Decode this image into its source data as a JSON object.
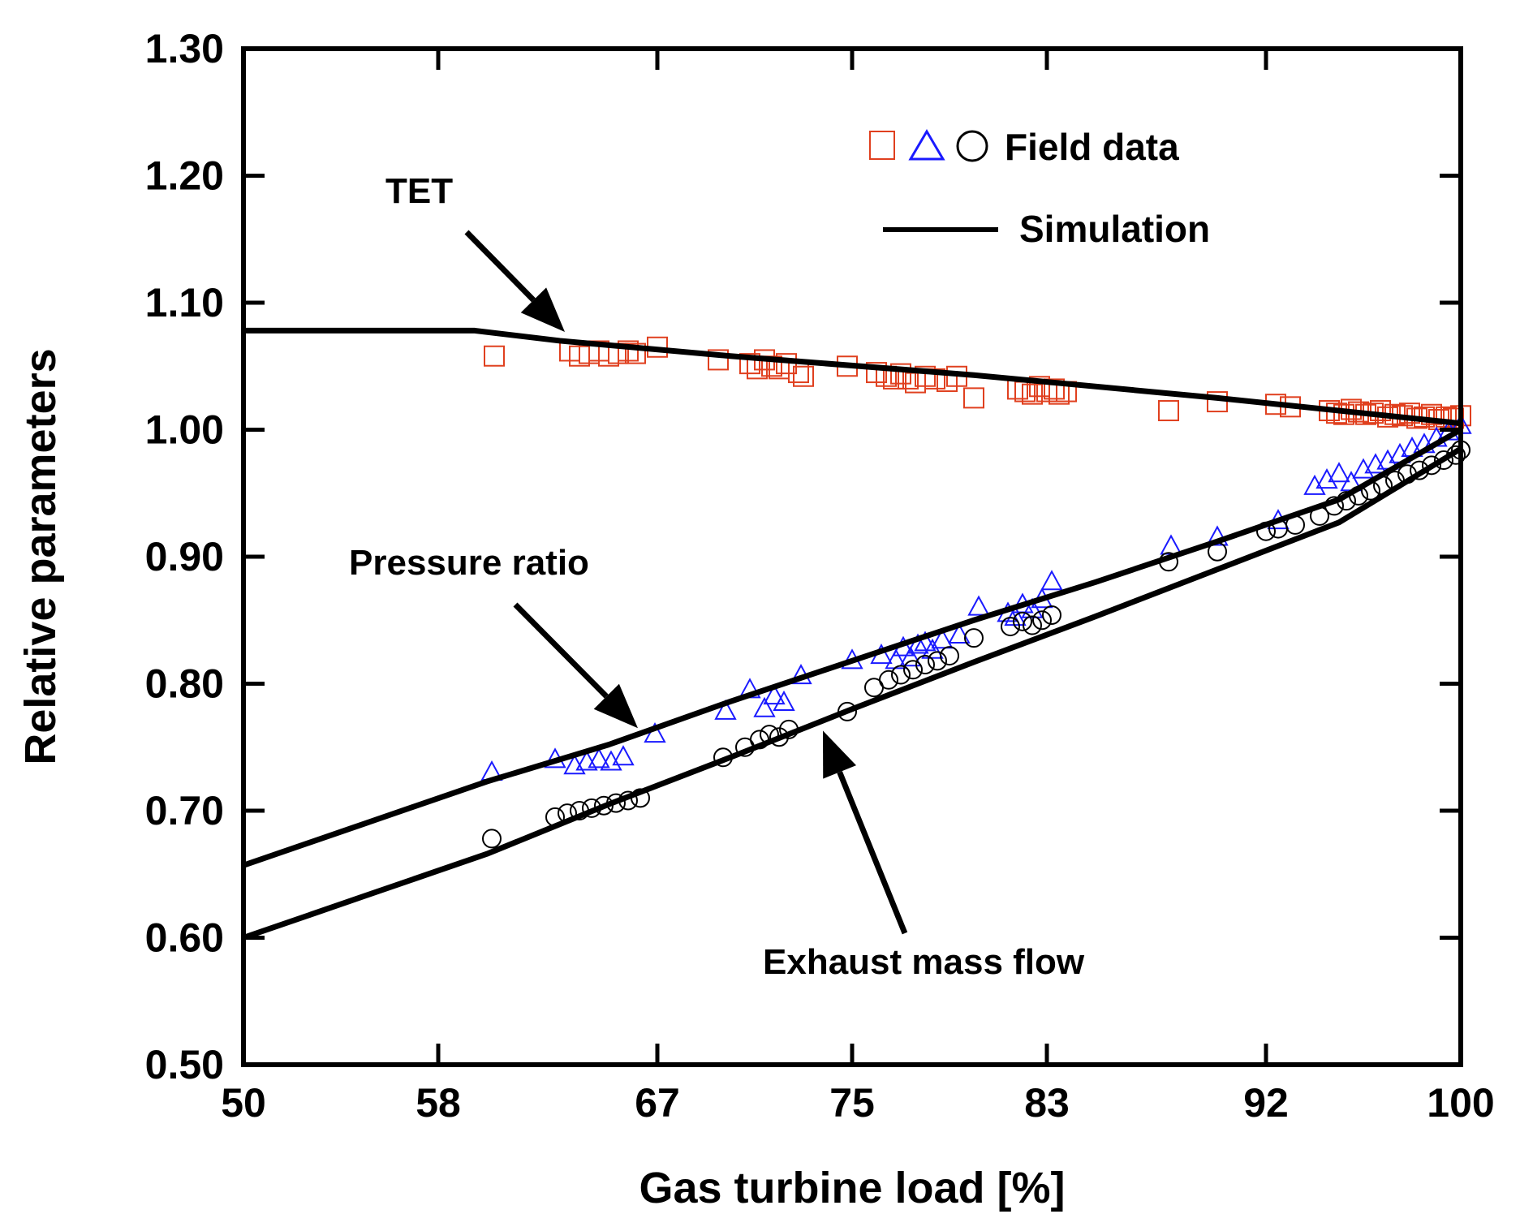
{
  "chart_data": {
    "type": "line",
    "xlabel": "Gas turbine load [%]",
    "ylabel": "Relative parameters",
    "xlim": [
      50,
      100
    ],
    "ylim": [
      0.5,
      1.3
    ],
    "x_ticks": [
      50,
      58,
      67,
      75,
      83,
      92,
      100
    ],
    "x_tick_labels": [
      "50",
      "58",
      "67",
      "75",
      "83",
      "92",
      "100"
    ],
    "y_ticks": [
      0.5,
      0.6,
      0.7,
      0.8,
      0.9,
      1.0,
      1.1,
      1.2,
      1.3
    ],
    "y_tick_labels": [
      "0.50",
      "0.60",
      "0.70",
      "0.80",
      "0.90",
      "1.00",
      "1.10",
      "1.20",
      "1.30"
    ],
    "grid": false,
    "legend": {
      "placement": "top-right",
      "field_label": "Field data",
      "simulation_label": "Simulation"
    },
    "colors": {
      "tet_markers": "#e0401f",
      "pressure_markers": "#1a1aff",
      "exhaust_markers": "#000000",
      "simulation_line": "#000000"
    },
    "annotations": [
      {
        "text": "TET",
        "points_to": [
          63.2,
          1.077
        ]
      },
      {
        "text": "Pressure ratio",
        "points_to": [
          66.2,
          0.765
        ]
      },
      {
        "text": "Exhaust mass flow",
        "points_to": [
          73.8,
          0.763
        ]
      }
    ],
    "simulation": [
      {
        "name": "TET",
        "x": [
          50,
          59.5,
          63,
          70,
          80,
          90,
          100
        ],
        "y": [
          1.078,
          1.078,
          1.07,
          1.058,
          1.043,
          1.025,
          1.005
        ]
      },
      {
        "name": "Pressure ratio",
        "x": [
          50,
          55,
          60,
          65,
          70,
          75,
          80,
          85,
          90,
          95,
          100
        ],
        "y": [
          0.657,
          0.69,
          0.723,
          0.752,
          0.786,
          0.818,
          0.85,
          0.88,
          0.912,
          0.945,
          1.0
        ]
      },
      {
        "name": "Exhaust mass flow",
        "x": [
          50,
          55,
          60,
          65,
          70,
          75,
          80,
          85,
          90,
          95,
          100
        ],
        "y": [
          0.6,
          0.633,
          0.666,
          0.705,
          0.742,
          0.78,
          0.817,
          0.853,
          0.89,
          0.927,
          0.985
        ]
      }
    ],
    "field_data": [
      {
        "marker": "square",
        "x": [
          60.3,
          63.4,
          63.8,
          64.2,
          64.6,
          65.0,
          65.4,
          65.8,
          66.1,
          67.0,
          69.5,
          70.8,
          71.1,
          71.4,
          71.7,
          72.0,
          72.3,
          72.8,
          73.0,
          74.8,
          76.0,
          76.4,
          76.7,
          77.0,
          77.3,
          77.6,
          78.0,
          78.4,
          78.9,
          79.3,
          80.0,
          81.8,
          82.1,
          82.4,
          82.7,
          83.0,
          83.3,
          83.5,
          83.8,
          88.0,
          90.0,
          92.4,
          93.0,
          94.6,
          94.9,
          95.2,
          95.5,
          95.8,
          96.1,
          96.4,
          96.7,
          97.0,
          97.3,
          97.6,
          97.9,
          98.2,
          98.5,
          98.8,
          99.1,
          99.4,
          99.7,
          100.0
        ],
        "y": [
          1.058,
          1.062,
          1.058,
          1.06,
          1.062,
          1.058,
          1.06,
          1.062,
          1.06,
          1.065,
          1.055,
          1.052,
          1.048,
          1.055,
          1.05,
          1.048,
          1.052,
          1.045,
          1.042,
          1.05,
          1.045,
          1.042,
          1.04,
          1.044,
          1.04,
          1.037,
          1.042,
          1.04,
          1.038,
          1.042,
          1.025,
          1.032,
          1.03,
          1.028,
          1.034,
          1.03,
          1.032,
          1.028,
          1.03,
          1.015,
          1.022,
          1.02,
          1.018,
          1.015,
          1.013,
          1.012,
          1.016,
          1.014,
          1.012,
          1.013,
          1.015,
          1.01,
          1.012,
          1.011,
          1.013,
          1.009,
          1.01,
          1.012,
          1.008,
          1.01,
          1.009,
          1.011
        ]
      },
      {
        "marker": "triangle",
        "x": [
          60.2,
          62.8,
          63.6,
          64.1,
          64.6,
          65.1,
          65.6,
          66.9,
          69.8,
          70.8,
          71.4,
          71.8,
          72.2,
          72.9,
          75.0,
          76.2,
          76.8,
          77.1,
          77.4,
          77.7,
          78.0,
          78.3,
          78.7,
          79.4,
          80.2,
          81.4,
          81.7,
          82.0,
          82.4,
          82.8,
          83.2,
          88.1,
          90.0,
          92.5,
          94.0,
          94.5,
          95.0,
          95.5,
          96.0,
          96.5,
          97.0,
          97.5,
          98.0,
          98.5,
          99.0,
          99.5,
          100.0
        ],
        "y": [
          0.73,
          0.74,
          0.735,
          0.738,
          0.74,
          0.738,
          0.742,
          0.76,
          0.778,
          0.795,
          0.78,
          0.79,
          0.785,
          0.806,
          0.818,
          0.822,
          0.818,
          0.828,
          0.82,
          0.83,
          0.832,
          0.826,
          0.834,
          0.838,
          0.86,
          0.855,
          0.852,
          0.862,
          0.858,
          0.866,
          0.88,
          0.908,
          0.915,
          0.928,
          0.955,
          0.96,
          0.965,
          0.958,
          0.968,
          0.972,
          0.975,
          0.98,
          0.985,
          0.988,
          0.993,
          0.998,
          1.003
        ]
      },
      {
        "marker": "circle",
        "x": [
          60.2,
          62.8,
          63.3,
          63.8,
          64.3,
          64.8,
          65.3,
          65.8,
          66.3,
          69.7,
          70.6,
          71.2,
          71.6,
          72.0,
          72.4,
          74.8,
          75.9,
          76.5,
          77.0,
          77.5,
          78.0,
          78.5,
          79.0,
          80.0,
          81.5,
          82.0,
          82.4,
          82.8,
          83.2,
          88.0,
          90.0,
          92.0,
          92.5,
          93.2,
          94.2,
          94.8,
          95.3,
          95.8,
          96.3,
          96.8,
          97.3,
          97.8,
          98.3,
          98.8,
          99.3,
          99.8,
          100.0
        ],
        "y": [
          0.678,
          0.695,
          0.698,
          0.7,
          0.702,
          0.704,
          0.706,
          0.708,
          0.71,
          0.742,
          0.75,
          0.756,
          0.76,
          0.758,
          0.764,
          0.778,
          0.797,
          0.803,
          0.807,
          0.811,
          0.815,
          0.818,
          0.822,
          0.836,
          0.845,
          0.849,
          0.846,
          0.85,
          0.854,
          0.896,
          0.904,
          0.92,
          0.922,
          0.925,
          0.932,
          0.94,
          0.944,
          0.948,
          0.952,
          0.956,
          0.96,
          0.965,
          0.968,
          0.972,
          0.976,
          0.98,
          0.984
        ]
      }
    ]
  }
}
